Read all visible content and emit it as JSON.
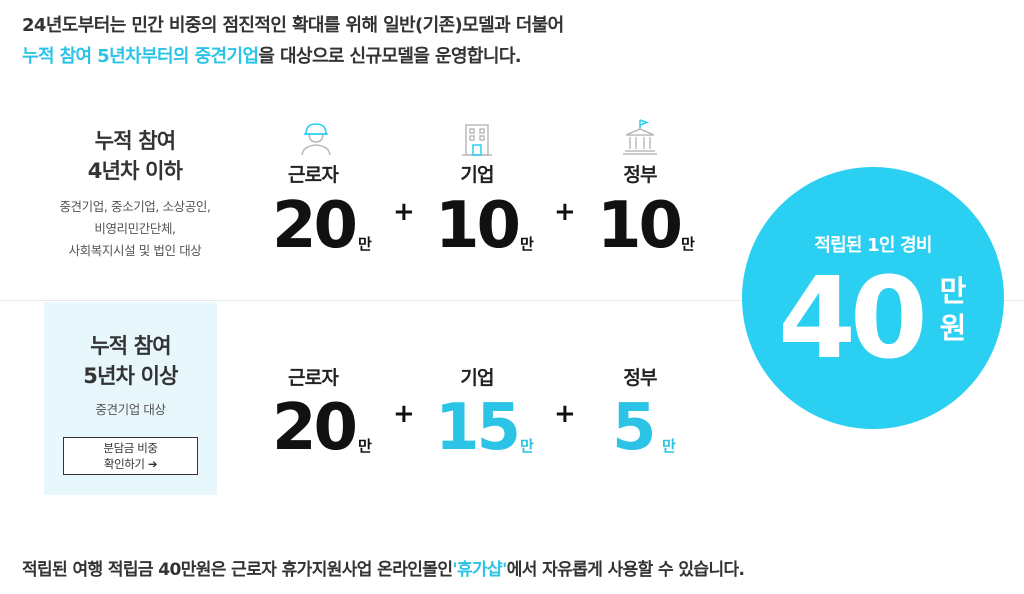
{
  "intro": {
    "line1": "24년도부터는 민간 비중의 점진적인 확대를 위해 일반(기존)모델과 더불어",
    "line2_highlight": "누적 참여 5년차부터의 중견기업",
    "line2_rest": "을 대상으로 신규모델을 운영합니다."
  },
  "tier1": {
    "title_line1": "누적 참여",
    "title_line2": "4년차 이하",
    "desc_line1": "중견기업, 중소기업, 소상공인,",
    "desc_line2": "비영리민간단체,",
    "desc_line3": "사회복지시설 및 법인 대상",
    "worker": {
      "label": "근로자",
      "amount": "20",
      "unit": "만"
    },
    "company": {
      "label": "기업",
      "amount": "10",
      "unit": "만"
    },
    "government": {
      "label": "정부",
      "amount": "10",
      "unit": "만"
    }
  },
  "tier2": {
    "title_line1": "누적 참여",
    "title_line2": "5년차 이상",
    "desc": "중견기업 대상",
    "button_line1": "분담금 비중",
    "button_line2": "확인하기 ➔",
    "worker": {
      "label": "근로자",
      "amount": "20",
      "unit": "만"
    },
    "company": {
      "label": "기업",
      "amount": "15",
      "unit": "만"
    },
    "government": {
      "label": "정부",
      "amount": "5",
      "unit": "만"
    }
  },
  "plus": "+",
  "total": {
    "caption": "적립된 1인 경비",
    "amount": "40",
    "unit_line1": "만",
    "unit_line2": "원"
  },
  "footer": {
    "before": "적립된 여행 적립금 40만원은 근로자 휴가지원사업 온라인몰인",
    "highlight": "'휴가샵'",
    "after": "에서 자유롭게 사용할 수 있습니다."
  },
  "icons": {
    "worker": "worker-helmet-icon",
    "company": "office-building-icon",
    "government": "government-building-icon"
  },
  "colors": {
    "accent": "#2bc4e6",
    "circle": "#2bcff2",
    "tier2_background": "#e8f7fc"
  }
}
